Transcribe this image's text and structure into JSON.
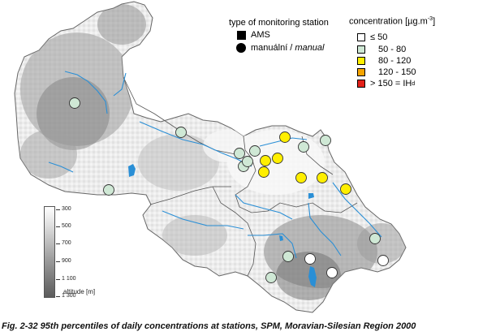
{
  "legend_station_type": {
    "title": "type of monitoring station",
    "ams": "AMS",
    "manual_prefix": "manuální / ",
    "manual_italic": "manual"
  },
  "legend_concentration": {
    "title": "concentration [µg.m",
    "title_sup": "-3",
    "title_end": "]",
    "classes": [
      {
        "label": "≤ 50",
        "color": "#ffffff"
      },
      {
        "label": "50 - 80",
        "color": "#cfe8d5"
      },
      {
        "label": "80 - 120",
        "color": "#ffef00"
      },
      {
        "label": "120 - 150",
        "color": "#f5a400"
      },
      {
        "label": "> 150 = IH",
        "sub": "d",
        "color": "#e32119"
      }
    ]
  },
  "altitude_scale": {
    "ticks": [
      "300",
      "500",
      "700",
      "900",
      "1 100",
      "1 300"
    ],
    "label": "altitude [m]"
  },
  "caption": "Fig. 2-32  95th percentiles of daily concentrations at stations, SPM, Moravian-Silesian Region 2000",
  "colors": {
    "water": "#2a8fd6",
    "boundary": "#555555",
    "terrain_low": "#f2f2f2",
    "terrain_high": "#6a6a6a"
  }
}
